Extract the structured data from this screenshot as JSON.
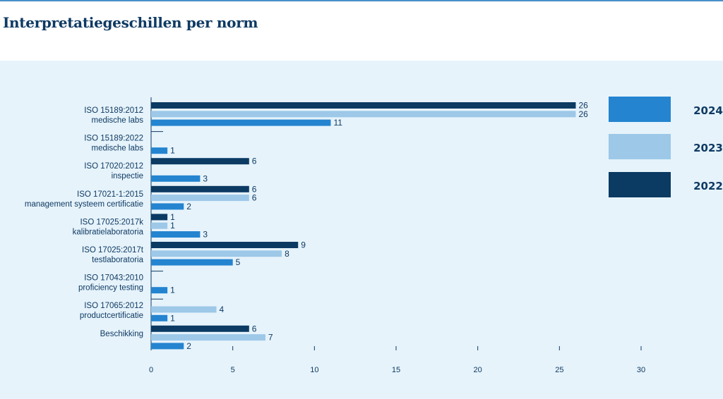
{
  "title": "Interpretatiegeschillen per norm",
  "colors": {
    "2024": "#2484d0",
    "2023": "#9dc8e8",
    "2022": "#0b3a63",
    "text": "#0f3a63",
    "panel": "#e6f3fb"
  },
  "chart_data": {
    "type": "bar",
    "orientation": "horizontal",
    "title": "Interpretatiegeschillen per norm",
    "xlim": [
      0,
      30
    ],
    "xticks": [
      0,
      5,
      10,
      15,
      20,
      25,
      30
    ],
    "legend_position": "right",
    "categories": [
      {
        "line1": "ISO 15189:2012",
        "line2": "medische labs"
      },
      {
        "line1": "ISO 15189:2022",
        "line2": "medische labs"
      },
      {
        "line1": "ISO 17020:2012",
        "line2": "inspectie"
      },
      {
        "line1": "ISO 17021-1:2015",
        "line2": "management systeem certificatie"
      },
      {
        "line1": "ISO 17025:2017k",
        "line2": "kalibratielaboratoria"
      },
      {
        "line1": "ISO 17025:2017t",
        "line2": "testlaboratoria"
      },
      {
        "line1": "ISO 17043:2010",
        "line2": "proficiency testing"
      },
      {
        "line1": "ISO 17065:2012",
        "line2": "productcertificatie"
      },
      {
        "line1": "Beschikking",
        "line2": ""
      }
    ],
    "series": [
      {
        "name": "2022",
        "values": [
          26,
          0,
          6,
          6,
          1,
          9,
          0,
          0,
          6
        ]
      },
      {
        "name": "2023",
        "values": [
          26,
          0,
          0,
          6,
          1,
          8,
          0,
          4,
          7
        ]
      },
      {
        "name": "2024",
        "values": [
          11,
          1,
          3,
          2,
          3,
          5,
          1,
          1,
          2
        ]
      }
    ],
    "legend_order": [
      "2024",
      "2023",
      "2022"
    ]
  }
}
